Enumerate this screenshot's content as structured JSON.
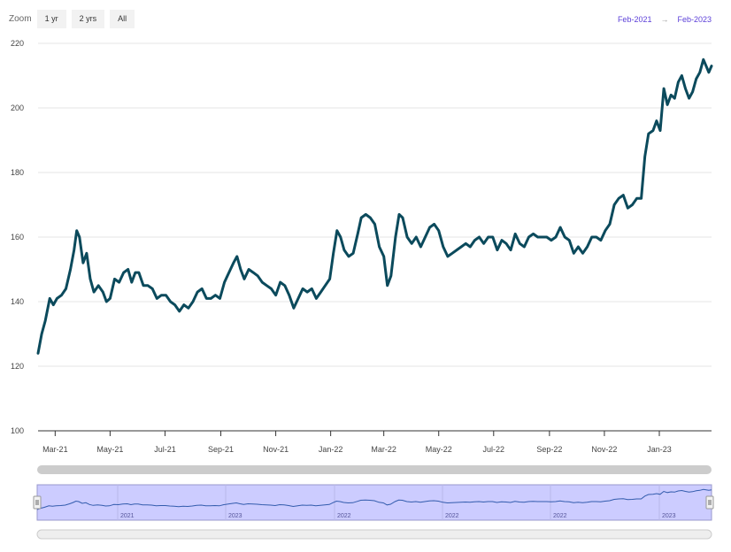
{
  "zoom": {
    "label": "Zoom",
    "buttons": [
      "1 yr",
      "2 yrs",
      "All"
    ]
  },
  "range": {
    "from": "Feb-2021",
    "to": "Feb-2023"
  },
  "colors": {
    "line": "#0b4a5c",
    "navigator_fill": "#ccccff",
    "navigator_line": "#335cad",
    "range_text": "#5b3fd8"
  },
  "navigator": {
    "year_labels": [
      "2021",
      "2023",
      "2022",
      "2022",
      "2022",
      "2023"
    ]
  },
  "chart_data": {
    "type": "line",
    "title": "",
    "xlabel": "",
    "ylabel": "",
    "ylim": [
      100,
      220
    ],
    "yticks": [
      100,
      120,
      140,
      160,
      180,
      200,
      220
    ],
    "xlim": [
      "2021-02-10",
      "2023-02-28"
    ],
    "xticks": [
      "Mar-21",
      "May-21",
      "Jul-21",
      "Sep-21",
      "Nov-21",
      "Jan-22",
      "Mar-22",
      "May-22",
      "Jul-22",
      "Sep-22",
      "Nov-22",
      "Jan-23"
    ],
    "grid": true,
    "series": [
      {
        "points": [
          [
            "2021-02-10",
            124
          ],
          [
            "2021-02-14",
            130
          ],
          [
            "2021-02-18",
            134
          ],
          [
            "2021-02-23",
            141
          ],
          [
            "2021-02-27",
            139
          ],
          [
            "2021-03-03",
            141
          ],
          [
            "2021-03-08",
            142
          ],
          [
            "2021-03-13",
            144
          ],
          [
            "2021-03-18",
            150
          ],
          [
            "2021-03-22",
            156
          ],
          [
            "2021-03-25",
            162
          ],
          [
            "2021-03-28",
            160
          ],
          [
            "2021-04-01",
            152
          ],
          [
            "2021-04-05",
            155
          ],
          [
            "2021-04-09",
            147
          ],
          [
            "2021-04-13",
            143
          ],
          [
            "2021-04-18",
            145
          ],
          [
            "2021-04-23",
            143
          ],
          [
            "2021-04-27",
            140
          ],
          [
            "2021-05-01",
            141
          ],
          [
            "2021-05-06",
            147
          ],
          [
            "2021-05-11",
            146
          ],
          [
            "2021-05-16",
            149
          ],
          [
            "2021-05-21",
            150
          ],
          [
            "2021-05-25",
            146
          ],
          [
            "2021-05-29",
            149
          ],
          [
            "2021-06-02",
            149
          ],
          [
            "2021-06-07",
            145
          ],
          [
            "2021-06-12",
            145
          ],
          [
            "2021-06-17",
            144
          ],
          [
            "2021-06-22",
            141
          ],
          [
            "2021-06-27",
            142
          ],
          [
            "2021-07-02",
            142
          ],
          [
            "2021-07-07",
            140
          ],
          [
            "2021-07-12",
            139
          ],
          [
            "2021-07-17",
            137
          ],
          [
            "2021-07-22",
            139
          ],
          [
            "2021-07-27",
            138
          ],
          [
            "2021-08-01",
            140
          ],
          [
            "2021-08-06",
            143
          ],
          [
            "2021-08-11",
            144
          ],
          [
            "2021-08-16",
            141
          ],
          [
            "2021-08-21",
            141
          ],
          [
            "2021-08-26",
            142
          ],
          [
            "2021-08-31",
            141
          ],
          [
            "2021-09-05",
            146
          ],
          [
            "2021-09-10",
            149
          ],
          [
            "2021-09-15",
            152
          ],
          [
            "2021-09-19",
            154
          ],
          [
            "2021-09-23",
            150
          ],
          [
            "2021-09-27",
            147
          ],
          [
            "2021-10-02",
            150
          ],
          [
            "2021-10-07",
            149
          ],
          [
            "2021-10-12",
            148
          ],
          [
            "2021-10-17",
            146
          ],
          [
            "2021-10-22",
            145
          ],
          [
            "2021-10-27",
            144
          ],
          [
            "2021-11-01",
            142
          ],
          [
            "2021-11-06",
            146
          ],
          [
            "2021-11-11",
            145
          ],
          [
            "2021-11-16",
            142
          ],
          [
            "2021-11-21",
            138
          ],
          [
            "2021-11-26",
            141
          ],
          [
            "2021-12-01",
            144
          ],
          [
            "2021-12-06",
            143
          ],
          [
            "2021-12-11",
            144
          ],
          [
            "2021-12-16",
            141
          ],
          [
            "2021-12-21",
            143
          ],
          [
            "2021-12-26",
            145
          ],
          [
            "2021-12-31",
            147
          ],
          [
            "2022-01-04",
            155
          ],
          [
            "2022-01-08",
            162
          ],
          [
            "2022-01-12",
            160
          ],
          [
            "2022-01-16",
            156
          ],
          [
            "2022-01-21",
            154
          ],
          [
            "2022-01-26",
            155
          ],
          [
            "2022-01-31",
            161
          ],
          [
            "2022-02-04",
            166
          ],
          [
            "2022-02-09",
            167
          ],
          [
            "2022-02-14",
            166
          ],
          [
            "2022-02-19",
            164
          ],
          [
            "2022-02-24",
            157
          ],
          [
            "2022-03-01",
            154
          ],
          [
            "2022-03-05",
            145
          ],
          [
            "2022-03-09",
            148
          ],
          [
            "2022-03-14",
            160
          ],
          [
            "2022-03-18",
            167
          ],
          [
            "2022-03-22",
            166
          ],
          [
            "2022-03-27",
            160
          ],
          [
            "2022-04-01",
            158
          ],
          [
            "2022-04-06",
            160
          ],
          [
            "2022-04-11",
            157
          ],
          [
            "2022-04-16",
            160
          ],
          [
            "2022-04-21",
            163
          ],
          [
            "2022-04-26",
            164
          ],
          [
            "2022-05-01",
            162
          ],
          [
            "2022-05-06",
            157
          ],
          [
            "2022-05-11",
            154
          ],
          [
            "2022-05-16",
            155
          ],
          [
            "2022-05-21",
            156
          ],
          [
            "2022-05-26",
            157
          ],
          [
            "2022-05-31",
            158
          ],
          [
            "2022-06-05",
            157
          ],
          [
            "2022-06-10",
            159
          ],
          [
            "2022-06-15",
            160
          ],
          [
            "2022-06-20",
            158
          ],
          [
            "2022-06-25",
            160
          ],
          [
            "2022-06-30",
            160
          ],
          [
            "2022-07-05",
            156
          ],
          [
            "2022-07-10",
            159
          ],
          [
            "2022-07-15",
            158
          ],
          [
            "2022-07-20",
            156
          ],
          [
            "2022-07-25",
            161
          ],
          [
            "2022-07-30",
            158
          ],
          [
            "2022-08-04",
            157
          ],
          [
            "2022-08-09",
            160
          ],
          [
            "2022-08-14",
            161
          ],
          [
            "2022-08-19",
            160
          ],
          [
            "2022-08-24",
            160
          ],
          [
            "2022-08-29",
            160
          ],
          [
            "2022-09-03",
            159
          ],
          [
            "2022-09-08",
            160
          ],
          [
            "2022-09-13",
            163
          ],
          [
            "2022-09-18",
            160
          ],
          [
            "2022-09-23",
            159
          ],
          [
            "2022-09-28",
            155
          ],
          [
            "2022-10-03",
            157
          ],
          [
            "2022-10-08",
            155
          ],
          [
            "2022-10-13",
            157
          ],
          [
            "2022-10-18",
            160
          ],
          [
            "2022-10-23",
            160
          ],
          [
            "2022-10-28",
            159
          ],
          [
            "2022-11-02",
            162
          ],
          [
            "2022-11-07",
            164
          ],
          [
            "2022-11-12",
            170
          ],
          [
            "2022-11-17",
            172
          ],
          [
            "2022-11-22",
            173
          ],
          [
            "2022-11-27",
            169
          ],
          [
            "2022-12-02",
            170
          ],
          [
            "2022-12-07",
            172
          ],
          [
            "2022-12-12",
            172
          ],
          [
            "2022-12-16",
            185
          ],
          [
            "2022-12-20",
            192
          ],
          [
            "2022-12-25",
            193
          ],
          [
            "2022-12-29",
            196
          ],
          [
            "2023-01-02",
            193
          ],
          [
            "2023-01-06",
            206
          ],
          [
            "2023-01-10",
            201
          ],
          [
            "2023-01-14",
            204
          ],
          [
            "2023-01-18",
            203
          ],
          [
            "2023-01-22",
            208
          ],
          [
            "2023-01-26",
            210
          ],
          [
            "2023-01-30",
            206
          ],
          [
            "2023-02-03",
            203
          ],
          [
            "2023-02-07",
            205
          ],
          [
            "2023-02-11",
            209
          ],
          [
            "2023-02-15",
            211
          ],
          [
            "2023-02-19",
            215
          ],
          [
            "2023-02-22",
            213
          ],
          [
            "2023-02-25",
            211
          ],
          [
            "2023-02-28",
            213
          ]
        ]
      }
    ]
  }
}
